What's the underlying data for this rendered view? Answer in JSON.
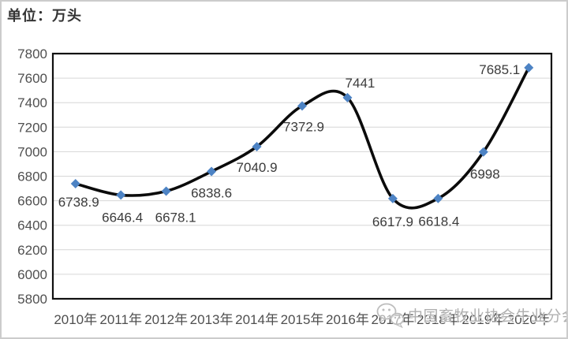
{
  "unit_label": "单位：万头",
  "watermark": {
    "icon": "wechat-icon",
    "text": "中国畜牧业协会牛业分会"
  },
  "chart_data": {
    "type": "line",
    "smooth": true,
    "title": "",
    "xlabel": "",
    "ylabel": "",
    "unit": "万头",
    "categories": [
      "2010年",
      "2011年",
      "2012年",
      "2013年",
      "2014年",
      "2015年",
      "2016年",
      "2017年",
      "2018年",
      "2019年",
      "2020年"
    ],
    "values": [
      6738.9,
      6646.4,
      6678.1,
      6838.6,
      7040.9,
      7372.9,
      7441,
      6617.9,
      6618.4,
      6998,
      7685.1
    ],
    "point_labels": [
      "6738.9",
      "6646.4",
      "6678.1",
      "6838.6",
      "7040.9",
      "7372.9",
      "7441",
      "6617.9",
      "6618.4",
      "6998",
      "7685.1"
    ],
    "ylim": [
      5800,
      7800
    ],
    "yticks": [
      5800,
      6000,
      6200,
      6400,
      6600,
      6800,
      7000,
      7200,
      7400,
      7600,
      7800
    ],
    "grid": "horizontal",
    "legend": "none",
    "line_color": "#0b0b0b",
    "marker": "diamond",
    "marker_color": "#4d83c4",
    "gridline_color": "#d6d6d6",
    "plot_border_color": "#111111"
  }
}
